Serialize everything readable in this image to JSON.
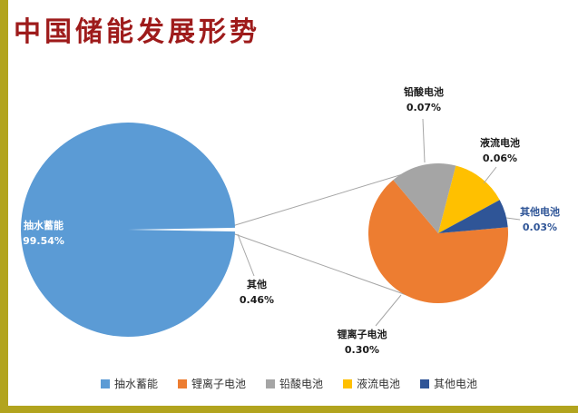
{
  "page": {
    "title": "中国储能发展形势"
  },
  "theme": {
    "background": "#FFFFFF",
    "accent_bar_color": "#B2A41E",
    "title_color": "#9E1B1B",
    "leader_line_color": "#A6A6A6"
  },
  "chart_data": {
    "type": "pie",
    "variant": "pie-of-pie",
    "unit": "percent",
    "title": "",
    "primary_pie": {
      "slices": [
        {
          "label": "抽水蓄能",
          "value": 99.54,
          "display": "99.54%",
          "color": "#5B9BD5"
        },
        {
          "label": "其他",
          "value": 0.46,
          "display": "0.46%",
          "color": "#FFFFFF"
        }
      ]
    },
    "secondary_pie": {
      "source_slice": "其他",
      "slices": [
        {
          "label": "锂离子电池",
          "value": 0.3,
          "display": "0.30%",
          "color": "#ED7D31"
        },
        {
          "label": "铅酸电池",
          "value": 0.07,
          "display": "0.07%",
          "color": "#A5A5A5"
        },
        {
          "label": "液流电池",
          "value": 0.06,
          "display": "0.06%",
          "color": "#FFC000"
        },
        {
          "label": "其他电池",
          "value": 0.03,
          "display": "0.03%",
          "color": "#2F5597"
        }
      ]
    },
    "legend": {
      "position": "bottom",
      "items": [
        {
          "label": "抽水蓄能",
          "color": "#5B9BD5"
        },
        {
          "label": "锂离子电池",
          "color": "#ED7D31"
        },
        {
          "label": "铅酸电池",
          "color": "#A5A5A5"
        },
        {
          "label": "液流电池",
          "color": "#FFC000"
        },
        {
          "label": "其他电池",
          "color": "#2F5597"
        }
      ]
    }
  }
}
